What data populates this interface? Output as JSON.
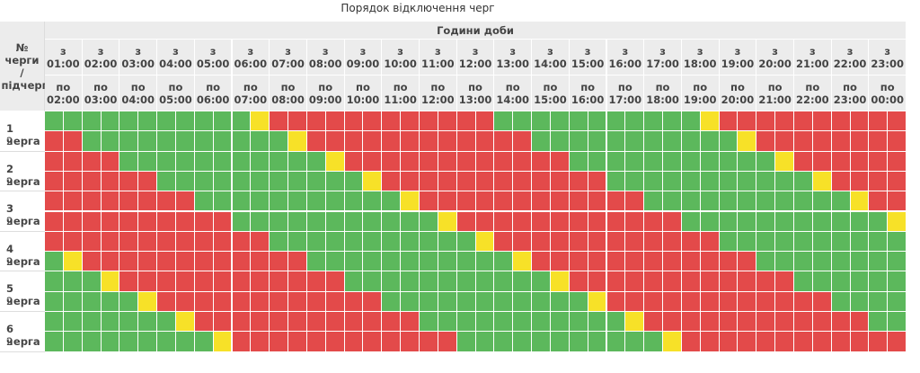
{
  "title": "Порядок відключення черг",
  "header": {
    "corner_label": "№ черги / підчерги",
    "hours_label": "Години доби",
    "slots": [
      {
        "from_prefix": "з",
        "from": "01:00",
        "to_prefix": "по",
        "to": "02:00"
      },
      {
        "from_prefix": "з",
        "from": "02:00",
        "to_prefix": "по",
        "to": "03:00"
      },
      {
        "from_prefix": "з",
        "from": "03:00",
        "to_prefix": "по",
        "to": "04:00"
      },
      {
        "from_prefix": "з",
        "from": "04:00",
        "to_prefix": "по",
        "to": "05:00"
      },
      {
        "from_prefix": "з",
        "from": "05:00",
        "to_prefix": "по",
        "to": "06:00"
      },
      {
        "from_prefix": "з",
        "from": "06:00",
        "to_prefix": "по",
        "to": "07:00"
      },
      {
        "from_prefix": "з",
        "from": "07:00",
        "to_prefix": "по",
        "to": "08:00"
      },
      {
        "from_prefix": "з",
        "from": "08:00",
        "to_prefix": "по",
        "to": "09:00"
      },
      {
        "from_prefix": "з",
        "from": "09:00",
        "to_prefix": "по",
        "to": "10:00"
      },
      {
        "from_prefix": "з",
        "from": "10:00",
        "to_prefix": "по",
        "to": "11:00"
      },
      {
        "from_prefix": "з",
        "from": "11:00",
        "to_prefix": "по",
        "to": "12:00"
      },
      {
        "from_prefix": "з",
        "from": "12:00",
        "to_prefix": "по",
        "to": "13:00"
      },
      {
        "from_prefix": "з",
        "from": "13:00",
        "to_prefix": "по",
        "to": "14:00"
      },
      {
        "from_prefix": "з",
        "from": "14:00",
        "to_prefix": "по",
        "to": "15:00"
      },
      {
        "from_prefix": "з",
        "from": "15:00",
        "to_prefix": "по",
        "to": "16:00"
      },
      {
        "from_prefix": "з",
        "from": "16:00",
        "to_prefix": "по",
        "to": "17:00"
      },
      {
        "from_prefix": "з",
        "from": "17:00",
        "to_prefix": "по",
        "to": "18:00"
      },
      {
        "from_prefix": "з",
        "from": "18:00",
        "to_prefix": "по",
        "to": "19:00"
      },
      {
        "from_prefix": "з",
        "from": "19:00",
        "to_prefix": "по",
        "to": "20:00"
      },
      {
        "from_prefix": "з",
        "from": "20:00",
        "to_prefix": "по",
        "to": "21:00"
      },
      {
        "from_prefix": "з",
        "from": "21:00",
        "to_prefix": "по",
        "to": "22:00"
      },
      {
        "from_prefix": "з",
        "from": "22:00",
        "to_prefix": "по",
        "to": "23:00"
      },
      {
        "from_prefix": "з",
        "from": "23:00",
        "to_prefix": "по",
        "to": "00:00"
      }
    ]
  },
  "legend_colors": {
    "off": "#e34a4a",
    "on": "#5cb85c",
    "possible": "#f7e128"
  },
  "rows": [
    {
      "queue_label": "1 черга",
      "subqueues": [
        {
          "label": "1",
          "states": "11111111111111111111111111111111111111111111111111111111111111111111111111"
        },
        {
          "label": "2",
          "states": "11111111111111111111111111111111111111111111111111111111111111111111111111"
        }
      ]
    }
  ],
  "queues": [
    {
      "label": "1 черга",
      "sub": "2"
    },
    {
      "label": "2 черга",
      "sub": "2"
    },
    {
      "label": "3 черга",
      "sub": "2"
    },
    {
      "label": "4 черга",
      "sub": "2"
    },
    {
      "label": "5 черга",
      "sub": "2"
    },
    {
      "label": "6 черга",
      "sub": "2"
    }
  ],
  "schedule": [
    "111111111111111111111111111111111111111111111111111111111111111111111111111",
    "1111111110000000000200011111111100000000002000111111111000000000020001111111",
    "1111111111000000000020001111111110000000000200011111111100000000002000111111"
  ],
  "slot_states": [
    "1111111111111111111111111111111111111111111111111111111111111111111111111111"
  ]
}
